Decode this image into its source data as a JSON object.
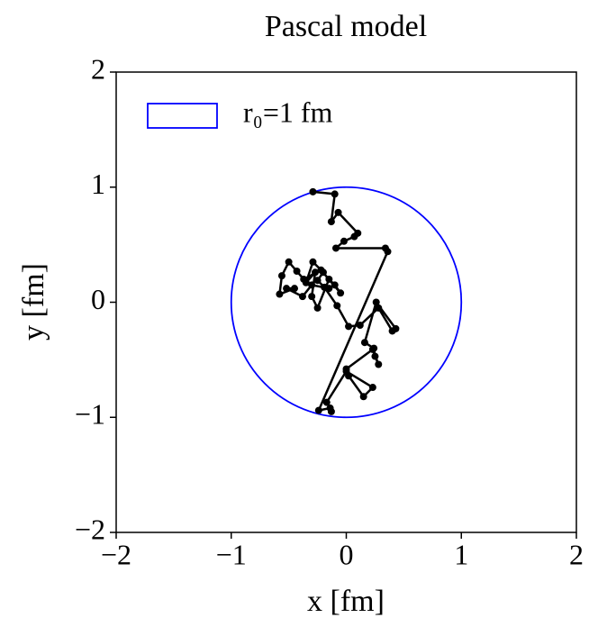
{
  "chart_data": {
    "type": "line",
    "title": "Pascal model",
    "xlabel": "x [fm]",
    "ylabel": "y [fm]",
    "xlim": [
      -2,
      2
    ],
    "ylim": [
      -2,
      2
    ],
    "xticks": [
      {
        "value": -2,
        "label": "−2"
      },
      {
        "value": -1,
        "label": "−1"
      },
      0,
      1,
      2
    ],
    "yticks": [
      {
        "value": -2,
        "label": "−2"
      },
      {
        "value": -1,
        "label": "−1"
      },
      0,
      1,
      2
    ],
    "color": "#000000",
    "x": [
      -0.29,
      -0.1,
      -0.13,
      -0.07,
      0.1,
      0.07,
      -0.02,
      -0.09,
      0.34,
      0.36,
      -0.24,
      -0.14,
      -0.13,
      -0.17,
      0.0,
      0.23,
      0.15,
      0.02,
      0.0,
      0.23,
      0.28,
      0.25,
      0.24,
      0.16,
      0.26,
      0.43,
      0.4,
      0.28,
      0.12,
      0.02,
      -0.08,
      -0.19,
      -0.25,
      -0.2,
      -0.29,
      -0.35,
      -0.27,
      -0.3,
      -0.25,
      -0.15,
      -0.1,
      -0.05,
      -0.22,
      -0.37,
      -0.43,
      -0.5,
      -0.56,
      -0.58,
      -0.45,
      -0.52,
      -0.38,
      -0.3,
      -0.15
    ],
    "values": [
      0.96,
      0.94,
      0.7,
      0.78,
      0.6,
      0.57,
      0.53,
      0.47,
      0.47,
      0.44,
      -0.94,
      -0.92,
      -0.95,
      -0.87,
      -0.6,
      -0.74,
      -0.82,
      -0.64,
      -0.58,
      -0.41,
      -0.54,
      -0.47,
      -0.4,
      -0.35,
      0.0,
      -0.23,
      -0.25,
      -0.05,
      -0.2,
      -0.21,
      -0.03,
      0.13,
      0.19,
      0.26,
      0.35,
      0.17,
      0.26,
      0.05,
      -0.05,
      0.2,
      0.15,
      0.08,
      0.28,
      0.2,
      0.27,
      0.35,
      0.23,
      0.07,
      0.12,
      0.12,
      0.05,
      0.15,
      0.12
    ],
    "circle": {
      "name": "r₀=1 fm",
      "radius": 1,
      "color": "#0000ff"
    }
  }
}
